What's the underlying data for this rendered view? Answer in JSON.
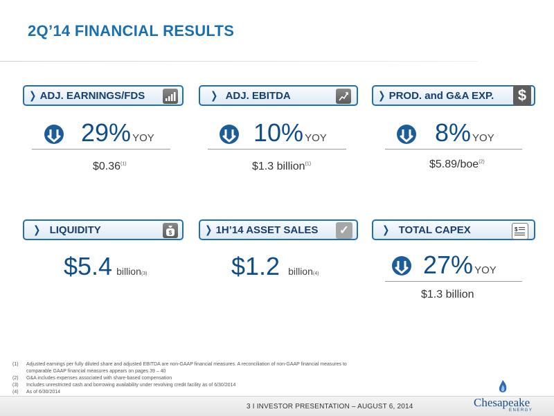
{
  "title": "2Q’14 FINANCIAL RESULTS",
  "cards": {
    "earnings": {
      "header": "ADJ. EARNINGS/FDS",
      "icon": "bar-chart-icon",
      "metric": "29%",
      "unit": "YOY",
      "direction": "down",
      "sub": "$0.36",
      "note": "(1)"
    },
    "ebitda": {
      "header": "ADJ. EBITDA",
      "icon": "trend-chart-icon",
      "metric": "10%",
      "unit": "YOY",
      "direction": "down",
      "sub": "$1.3 billion",
      "note": "(1)"
    },
    "prod": {
      "header": "PROD. and G&A EXP.",
      "icon": "dollar-icon",
      "metric": "8%",
      "unit": "YOY",
      "direction": "down",
      "sub": "$5.89/boe",
      "note": "(2)"
    },
    "liquidity": {
      "header": "LIQUIDITY",
      "icon": "money-bag-icon",
      "metric": "$5.4",
      "unit": "billion",
      "note": "(3)"
    },
    "asset_sales": {
      "header": "1H’14 ASSET SALES",
      "icon": "checkmark-icon",
      "metric": "$1.2",
      "unit": "billion",
      "note": "(4)"
    },
    "capex": {
      "header": "TOTAL CAPEX",
      "icon": "invoice-icon",
      "metric": "27%",
      "unit": "YOY",
      "direction": "down",
      "sub": "$1.3 billion"
    }
  },
  "footnotes": [
    {
      "num": "(1)",
      "text": "Adjusted earnings per fully diluted share and adjusted EBITDA are non-GAAP financial measures.  A reconciliation of non-GAAP financial measures to comparable GAAP financial measures appears on pages 39 – 40"
    },
    {
      "num": "(2)",
      "text": "G&A includes expenses associated with share-based compensation"
    },
    {
      "num": "(3)",
      "text": "Includes unrestricted cash and borrowing availability under revolving credit facility as of 6/30/2014"
    },
    {
      "num": "(4)",
      "text": "As of 6/30/2014"
    }
  ],
  "footer": {
    "text": "3   I   INVESTOR PRESENTATION – AUGUST 6, 2014"
  },
  "logo": {
    "name": "Chesapeake",
    "sub": "ENERGY"
  },
  "colors": {
    "accent": "#1f6fb5",
    "title": "#1a6fb0",
    "metric": "#0e4d8c"
  }
}
